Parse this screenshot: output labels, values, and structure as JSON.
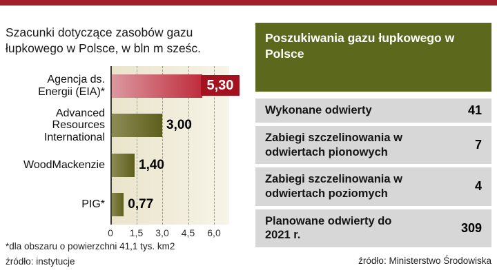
{
  "page": {
    "top_strip_color": "#a11e2b"
  },
  "chart": {
    "title": "Szacunki dotyczące zasobów gazu łupkowego w Polsce, w bln m sześc.",
    "footnote": "*dla obszaru o powierzchni 41,1 tys. km2",
    "source": "źródło: instytucje"
  },
  "chart_data": {
    "type": "bar",
    "orientation": "horizontal",
    "title": "Szacunki dotyczące zasobów gazu łupkowego w Polsce, w bln m sześc.",
    "unit": "bln m sześc.",
    "categories": [
      "Agencja ds. Energii (EIA)*",
      "Advanced Resources International",
      "WoodMackenzie",
      "PIG*"
    ],
    "values": [
      5.3,
      3.0,
      1.4,
      0.77
    ],
    "value_labels": [
      "5,30",
      "3,00",
      "1,40",
      "0,77"
    ],
    "x_ticks": [
      "0",
      "1,5",
      "3,0",
      "4,5",
      "6,0"
    ],
    "x_tick_values": [
      0,
      1.5,
      3.0,
      4.5,
      6.0
    ],
    "xlim": [
      0,
      6
    ],
    "grid": "vertical-dashed",
    "highlight_series_color": "#bf2c3c",
    "bar_color": "#5e5e1c",
    "footnote": "*dla obszaru o powierzchni 41,1 tys. km2",
    "source": "źródło: instytucje"
  },
  "table": {
    "header": "Poszukiwania gazu łupkowego w Polsce",
    "rows": [
      {
        "label": "Wykonane odwierty",
        "value": "41"
      },
      {
        "label": "Zabiegi szczelinowania w odwiertach pionowych",
        "value": "7"
      },
      {
        "label": "Zabiegi szczelinowania w odwiertach poziomych",
        "value": "4"
      },
      {
        "label": "Planowane odwierty do 2021 r.",
        "value": "309"
      }
    ],
    "source": "źródło: Ministerstwo Środowiska"
  }
}
